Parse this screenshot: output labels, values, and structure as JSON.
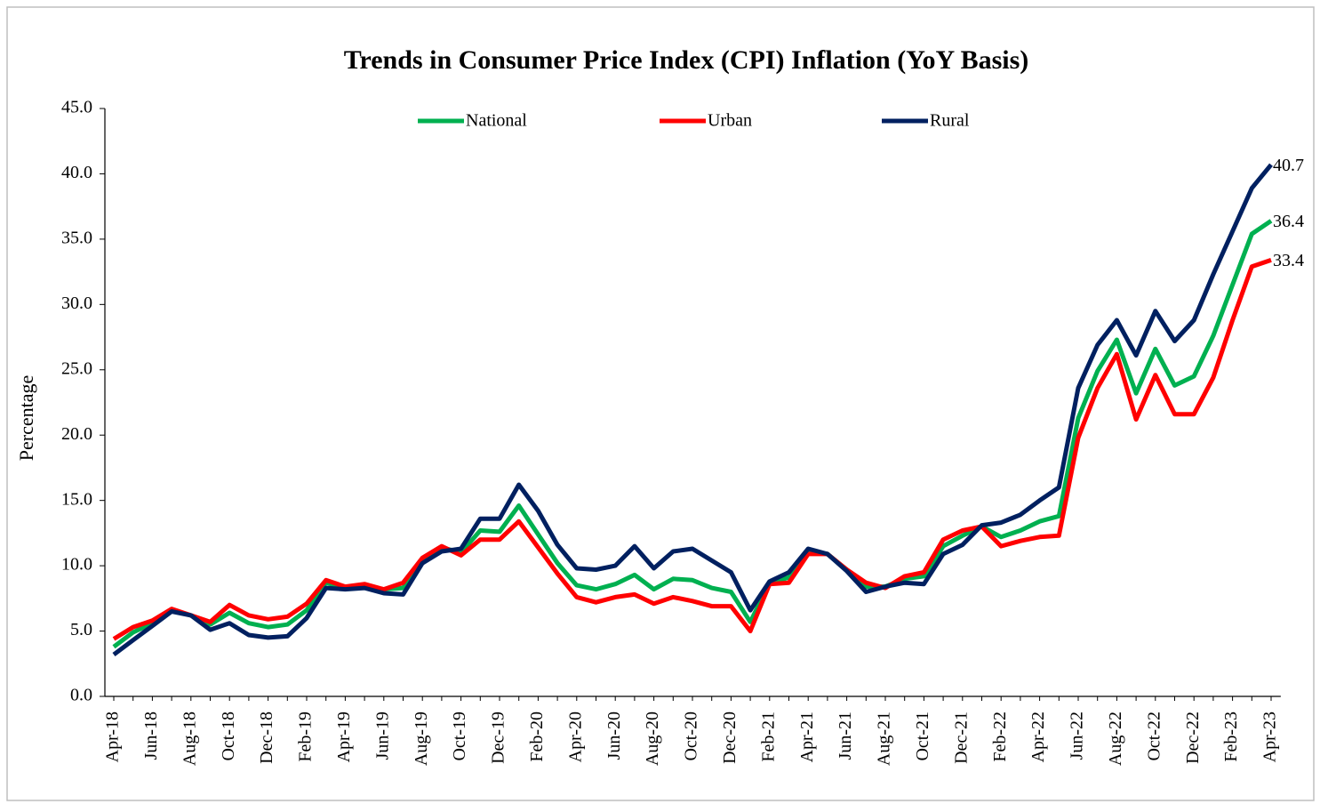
{
  "chart_data": {
    "type": "line",
    "title": "Trends in Consumer Price Index (CPI) Inflation  (YoY Basis)",
    "ylabel": "Percentage",
    "categories": [
      "Apr-18",
      null,
      "Jun-18",
      null,
      "Aug-18",
      null,
      "Oct-18",
      null,
      "Dec-18",
      null,
      "Feb-19",
      null,
      "Apr-19",
      null,
      "Jun-19",
      null,
      "Aug-19",
      null,
      "Oct-19",
      null,
      "Dec-19",
      null,
      "Feb-20",
      null,
      "Apr-20",
      null,
      "Jun-20",
      null,
      "Aug-20",
      null,
      "Oct-20",
      null,
      "Dec-20",
      null,
      "Feb-21",
      null,
      "Apr-21",
      null,
      "Jun-21",
      null,
      "Aug-21",
      null,
      "Oct-21",
      null,
      "Dec-21",
      null,
      "Feb-22",
      null,
      "Apr-22",
      null,
      "Jun-22",
      null,
      "Aug-22",
      null,
      "Oct-22",
      null,
      "Dec-22",
      null,
      "Feb-23",
      null,
      "Apr-23"
    ],
    "series": [
      {
        "name": "National",
        "color": "#00b050",
        "values": [
          3.8,
          4.9,
          5.6,
          6.6,
          6.2,
          5.5,
          6.4,
          5.6,
          5.3,
          5.5,
          6.6,
          8.7,
          8.3,
          8.4,
          8.2,
          8.3,
          10.5,
          11.4,
          11.0,
          12.7,
          12.6,
          14.6,
          12.4,
          10.2,
          8.5,
          8.2,
          8.6,
          9.3,
          8.2,
          9.0,
          8.9,
          8.3,
          8.0,
          5.7,
          8.7,
          9.1,
          11.1,
          10.9,
          9.7,
          8.4,
          8.4,
          9.0,
          9.2,
          11.5,
          12.3,
          13.0,
          12.2,
          12.7,
          13.4,
          13.8,
          21.3,
          24.9,
          27.3,
          23.2,
          26.6,
          23.8,
          24.5,
          27.6,
          31.5,
          35.4,
          36.4
        ]
      },
      {
        "name": "Urban",
        "color": "#ff0000",
        "values": [
          4.4,
          5.3,
          5.8,
          6.7,
          6.2,
          5.7,
          7.0,
          6.2,
          5.9,
          6.1,
          7.1,
          8.9,
          8.4,
          8.6,
          8.2,
          8.7,
          10.6,
          11.5,
          10.8,
          12.0,
          12.0,
          13.4,
          11.4,
          9.4,
          7.6,
          7.2,
          7.6,
          7.8,
          7.1,
          7.6,
          7.3,
          6.9,
          6.9,
          5.0,
          8.6,
          8.7,
          10.9,
          10.9,
          9.7,
          8.7,
          8.3,
          9.2,
          9.5,
          12.0,
          12.7,
          13.0,
          11.5,
          11.9,
          12.2,
          12.3,
          19.8,
          23.6,
          26.2,
          21.2,
          24.6,
          21.6,
          21.6,
          24.4,
          28.8,
          32.9,
          33.4
        ]
      },
      {
        "name": "Rural",
        "color": "#002060",
        "values": [
          3.2,
          4.3,
          5.4,
          6.5,
          6.2,
          5.1,
          5.6,
          4.7,
          4.5,
          4.6,
          6.0,
          8.3,
          8.2,
          8.3,
          7.9,
          7.8,
          10.2,
          11.1,
          11.3,
          13.6,
          13.6,
          16.2,
          14.2,
          11.6,
          9.8,
          9.7,
          10.0,
          11.5,
          9.8,
          11.1,
          11.3,
          10.4,
          9.5,
          6.6,
          8.8,
          9.5,
          11.3,
          10.9,
          9.6,
          8.0,
          8.4,
          8.7,
          8.6,
          10.9,
          11.6,
          13.1,
          13.3,
          13.9,
          15.0,
          16.0,
          23.6,
          26.9,
          28.8,
          26.1,
          29.5,
          27.2,
          28.8,
          32.3,
          35.6,
          38.9,
          40.7
        ]
      }
    ],
    "ylim": [
      0,
      45
    ],
    "yticks": [
      {
        "value": 0,
        "label": "0.0"
      },
      {
        "value": 5,
        "label": "5.0"
      },
      {
        "value": 10,
        "label": "10.0"
      },
      {
        "value": 15,
        "label": "15.0"
      },
      {
        "value": 20,
        "label": "20.0"
      },
      {
        "value": 25,
        "label": "25.0"
      },
      {
        "value": 30,
        "label": "30.0"
      },
      {
        "value": 35,
        "label": "35.0"
      },
      {
        "value": 40,
        "label": "40.0"
      },
      {
        "value": 45,
        "label": "45.0"
      }
    ],
    "legend": "top",
    "grid": false
  }
}
